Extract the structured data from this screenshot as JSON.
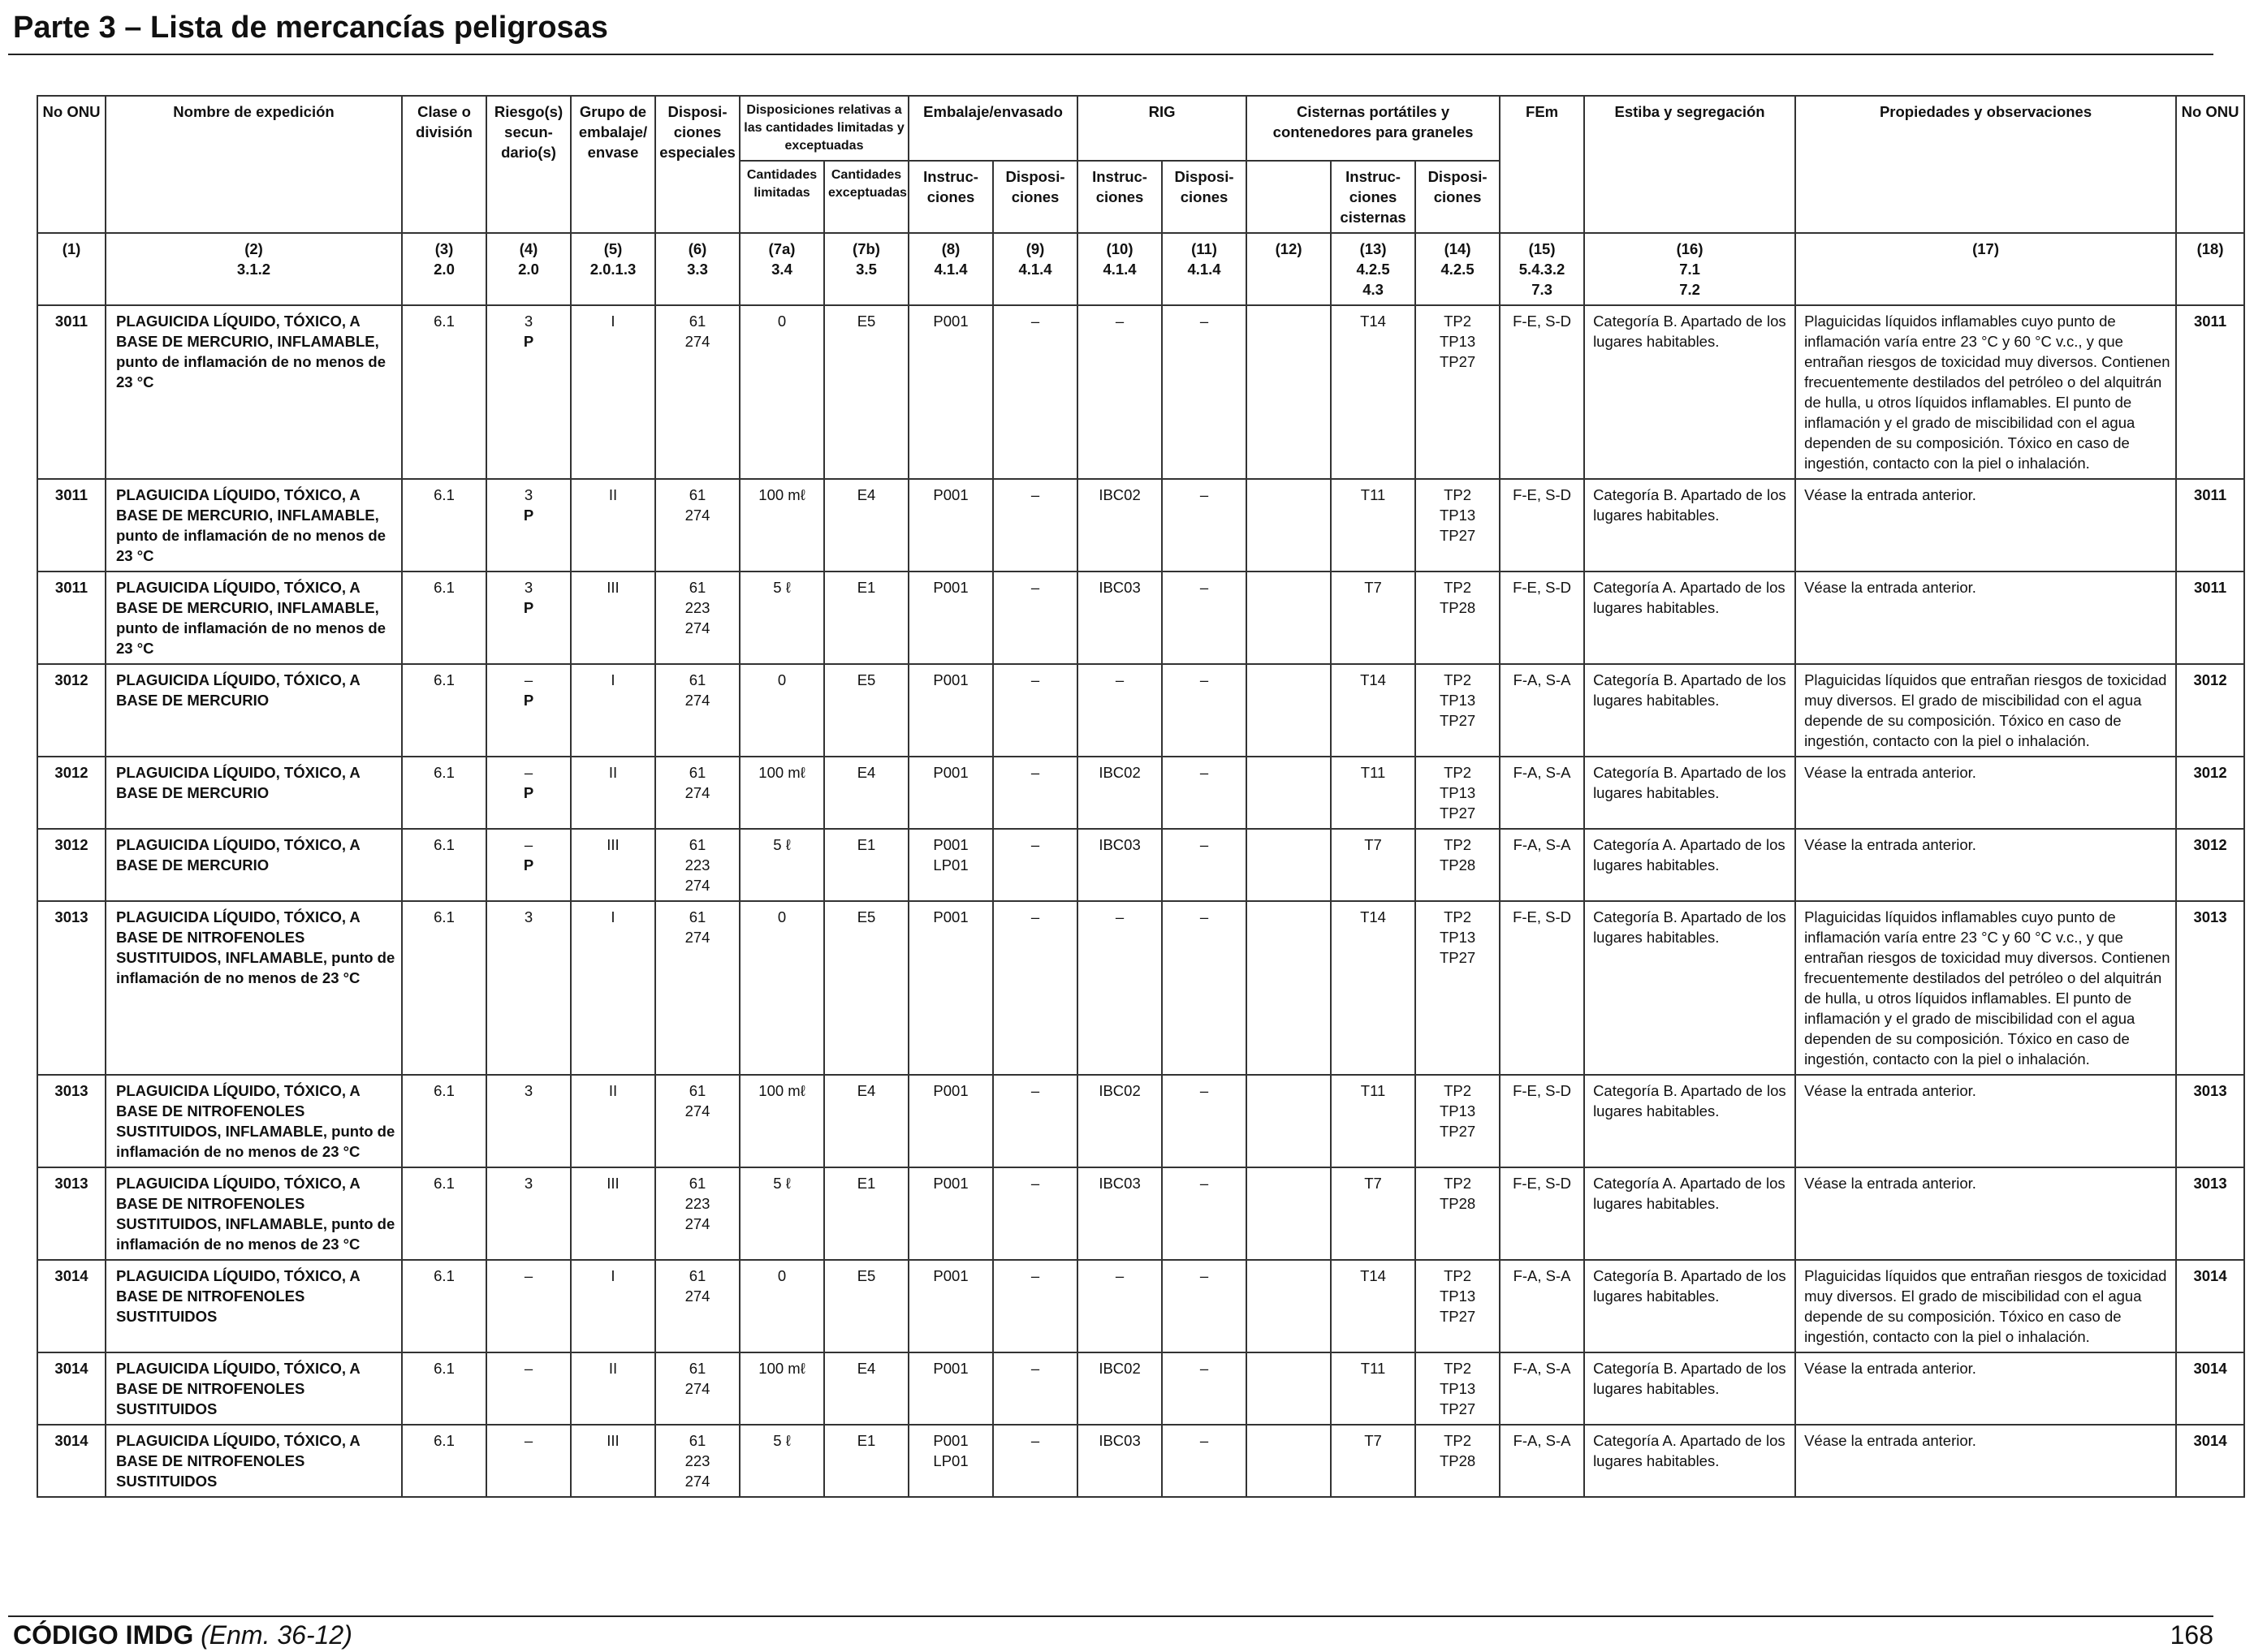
{
  "header": {
    "title": "Parte 3 – Lista de mercancías peligrosas"
  },
  "columns": {
    "c1": "No ONU",
    "c2": "Nombre de expedición",
    "c3": "Clase o división",
    "c4": "Riesgo(s) secun-dario(s)",
    "c5": "Grupo de embalaje/ envase",
    "c6": "Disposi-ciones especiales",
    "c7": "Disposiciones relativas a las cantidades limitadas y exceptuadas",
    "c7a": "Cantidades limitadas",
    "c7b": "Cantidades exceptuadas",
    "c8_9": "Embalaje/envasado",
    "c8": "Instruc-ciones",
    "c9": "Disposi-ciones",
    "c10_11": "RIG",
    "c10": "Instruc-ciones",
    "c11": "Disposi-ciones",
    "c12_14": "Cisternas portátiles y contenedores para graneles",
    "c13": "Instruc-ciones cisternas",
    "c14": "Disposi-ciones",
    "c15": "FEm",
    "c16": "Estiba y segregación",
    "c17": "Propiedades y observaciones",
    "c18": "No ONU"
  },
  "colnums": [
    {
      "n": "(1)",
      "ref": ""
    },
    {
      "n": "(2)",
      "ref": "3.1.2"
    },
    {
      "n": "(3)",
      "ref": "2.0"
    },
    {
      "n": "(4)",
      "ref": "2.0"
    },
    {
      "n": "(5)",
      "ref": "2.0.1.3"
    },
    {
      "n": "(6)",
      "ref": "3.3"
    },
    {
      "n": "(7a)",
      "ref": "3.4"
    },
    {
      "n": "(7b)",
      "ref": "3.5"
    },
    {
      "n": "(8)",
      "ref": "4.1.4"
    },
    {
      "n": "(9)",
      "ref": "4.1.4"
    },
    {
      "n": "(10)",
      "ref": "4.1.4"
    },
    {
      "n": "(11)",
      "ref": "4.1.4"
    },
    {
      "n": "(12)",
      "ref": ""
    },
    {
      "n": "(13)",
      "ref": "4.2.5\n4.3"
    },
    {
      "n": "(14)",
      "ref": "4.2.5"
    },
    {
      "n": "(15)",
      "ref": "5.4.3.2\n7.3"
    },
    {
      "n": "(16)",
      "ref": "7.1\n7.2"
    },
    {
      "n": "(17)",
      "ref": ""
    },
    {
      "n": "(18)",
      "ref": ""
    }
  ],
  "rows": [
    {
      "un": "3011",
      "name": "PLAGUICIDA LÍQUIDO, TÓXICO, A BASE DE MERCURIO, INFLAMABLE,",
      "name_extra": "punto de inflamación de no menos de 23 °C",
      "cls": "6.1",
      "sub": "3\nP",
      "pg": "I",
      "sp": "61\n274",
      "lq": "0",
      "eq": "E5",
      "pi": "P001",
      "pp": "–",
      "ibc": "–",
      "ibcp": "–",
      "c12": "",
      "tank": "T14",
      "tankp": "TP2\nTP13\nTP27",
      "ems": "F-E, S-D",
      "stow": "Categoría B. Apartado de los lugares habitables.",
      "props": "Plaguicidas líquidos inflamables cuyo punto de inflamación varía entre 23 °C y 60 °C v.c., y que entrañan riesgos de toxicidad muy diversos. Contienen frecuentemente destilados del petróleo o del alquitrán de hulla, u otros líquidos inflamables. El punto de inflamación y el grado de miscibilidad con el agua dependen de su composición. Tóxico en caso de ingestión, contacto con la piel o inhalación.",
      "un2": "3011"
    },
    {
      "un": "3011",
      "name": "PLAGUICIDA LÍQUIDO, TÓXICO, A BASE DE MERCURIO, INFLAMABLE,",
      "name_extra": "punto de inflamación de no menos de 23 °C",
      "cls": "6.1",
      "sub": "3\nP",
      "pg": "II",
      "sp": "61\n274",
      "lq": "100 mℓ",
      "eq": "E4",
      "pi": "P001",
      "pp": "–",
      "ibc": "IBC02",
      "ibcp": "–",
      "c12": "",
      "tank": "T11",
      "tankp": "TP2\nTP13\nTP27",
      "ems": "F-E, S-D",
      "stow": "Categoría B. Apartado de los lugares habitables.",
      "props": "Véase la entrada anterior.",
      "un2": "3011"
    },
    {
      "un": "3011",
      "name": "PLAGUICIDA LÍQUIDO, TÓXICO, A BASE DE MERCURIO, INFLAMABLE,",
      "name_extra": "punto de inflamación de no menos de 23 °C",
      "cls": "6.1",
      "sub": "3\nP",
      "pg": "III",
      "sp": "61\n223\n274",
      "lq": "5 ℓ",
      "eq": "E1",
      "pi": "P001",
      "pp": "–",
      "ibc": "IBC03",
      "ibcp": "–",
      "c12": "",
      "tank": "T7",
      "tankp": "TP2\nTP28",
      "ems": "F-E, S-D",
      "stow": "Categoría A. Apartado de los lugares habitables.",
      "props": "Véase la entrada anterior.",
      "un2": "3011"
    },
    {
      "un": "3012",
      "name": "PLAGUICIDA LÍQUIDO, TÓXICO, A BASE DE MERCURIO",
      "name_extra": "",
      "cls": "6.1",
      "sub": "–\nP",
      "pg": "I",
      "sp": "61\n274",
      "lq": "0",
      "eq": "E5",
      "pi": "P001",
      "pp": "–",
      "ibc": "–",
      "ibcp": "–",
      "c12": "",
      "tank": "T14",
      "tankp": "TP2\nTP13\nTP27",
      "ems": "F-A, S-A",
      "stow": "Categoría B. Apartado de los lugares habitables.",
      "props": "Plaguicidas líquidos que entrañan riesgos de toxicidad muy diversos. El grado de miscibilidad con el agua depende de su composición. Tóxico en caso de ingestión, contacto con la piel o inhalación.",
      "un2": "3012"
    },
    {
      "un": "3012",
      "name": "PLAGUICIDA LÍQUIDO, TÓXICO, A BASE DE MERCURIO",
      "name_extra": "",
      "cls": "6.1",
      "sub": "–\nP",
      "pg": "II",
      "sp": "61\n274",
      "lq": "100 mℓ",
      "eq": "E4",
      "pi": "P001",
      "pp": "–",
      "ibc": "IBC02",
      "ibcp": "–",
      "c12": "",
      "tank": "T11",
      "tankp": "TP2\nTP13\nTP27",
      "ems": "F-A, S-A",
      "stow": "Categoría B. Apartado de los lugares habitables.",
      "props": "Véase la entrada anterior.",
      "un2": "3012"
    },
    {
      "un": "3012",
      "name": "PLAGUICIDA LÍQUIDO, TÓXICO, A BASE DE MERCURIO",
      "name_extra": "",
      "cls": "6.1",
      "sub": "–\nP",
      "pg": "III",
      "sp": "61\n223\n274",
      "lq": "5 ℓ",
      "eq": "E1",
      "pi": "P001\nLP01",
      "pp": "–",
      "ibc": "IBC03",
      "ibcp": "–",
      "c12": "",
      "tank": "T7",
      "tankp": "TP2\nTP28",
      "ems": "F-A, S-A",
      "stow": "Categoría A. Apartado de los lugares habitables.",
      "props": "Véase la entrada anterior.",
      "un2": "3012"
    },
    {
      "un": "3013",
      "name": "PLAGUICIDA LÍQUIDO, TÓXICO, A BASE DE NITROFENOLES SUSTITUIDOS, INFLAMABLE,",
      "name_extra": "punto de inflamación de no menos de 23 °C",
      "cls": "6.1",
      "sub": "3",
      "pg": "I",
      "sp": "61\n274",
      "lq": "0",
      "eq": "E5",
      "pi": "P001",
      "pp": "–",
      "ibc": "–",
      "ibcp": "–",
      "c12": "",
      "tank": "T14",
      "tankp": "TP2\nTP13\nTP27",
      "ems": "F-E, S-D",
      "stow": "Categoría B. Apartado de los lugares habitables.",
      "props": "Plaguicidas líquidos inflamables cuyo punto de inflamación varía entre 23 °C y 60 °C v.c., y que entrañan riesgos de toxicidad muy diversos. Contienen frecuentemente destilados del petróleo o del alquitrán de hulla, u otros líquidos inflamables. El punto de inflamación y el grado de miscibilidad con el agua dependen de su composición. Tóxico en caso de ingestión, contacto con la piel o inhalación.",
      "un2": "3013"
    },
    {
      "un": "3013",
      "name": "PLAGUICIDA LÍQUIDO, TÓXICO, A BASE DE NITROFENOLES SUSTITUIDOS, INFLAMABLE,",
      "name_extra": "punto de inflamación de no menos de 23 °C",
      "cls": "6.1",
      "sub": "3",
      "pg": "II",
      "sp": "61\n274",
      "lq": "100 mℓ",
      "eq": "E4",
      "pi": "P001",
      "pp": "–",
      "ibc": "IBC02",
      "ibcp": "–",
      "c12": "",
      "tank": "T11",
      "tankp": "TP2\nTP13\nTP27",
      "ems": "F-E, S-D",
      "stow": "Categoría B. Apartado de los lugares habitables.",
      "props": "Véase la entrada anterior.",
      "un2": "3013"
    },
    {
      "un": "3013",
      "name": "PLAGUICIDA LÍQUIDO, TÓXICO, A BASE DE NITROFENOLES SUSTITUIDOS, INFLAMABLE,",
      "name_extra": "punto de inflamación de no menos de 23 °C",
      "cls": "6.1",
      "sub": "3",
      "pg": "III",
      "sp": "61\n223\n274",
      "lq": "5 ℓ",
      "eq": "E1",
      "pi": "P001",
      "pp": "–",
      "ibc": "IBC03",
      "ibcp": "–",
      "c12": "",
      "tank": "T7",
      "tankp": "TP2\nTP28",
      "ems": "F-E, S-D",
      "stow": "Categoría A. Apartado de los lugares habitables.",
      "props": "Véase la entrada anterior.",
      "un2": "3013"
    },
    {
      "un": "3014",
      "name": "PLAGUICIDA LÍQUIDO, TÓXICO, A BASE DE NITROFENOLES SUSTITUIDOS",
      "name_extra": "",
      "cls": "6.1",
      "sub": "–",
      "pg": "I",
      "sp": "61\n274",
      "lq": "0",
      "eq": "E5",
      "pi": "P001",
      "pp": "–",
      "ibc": "–",
      "ibcp": "–",
      "c12": "",
      "tank": "T14",
      "tankp": "TP2\nTP13\nTP27",
      "ems": "F-A, S-A",
      "stow": "Categoría B. Apartado de los lugares habitables.",
      "props": "Plaguicidas líquidos que entrañan riesgos de toxicidad muy diversos. El grado de miscibilidad con el agua depende de su composición. Tóxico en caso de ingestión, contacto con la piel o inhalación.",
      "un2": "3014"
    },
    {
      "un": "3014",
      "name": "PLAGUICIDA LÍQUIDO, TÓXICO, A BASE DE NITROFENOLES SUSTITUIDOS",
      "name_extra": "",
      "cls": "6.1",
      "sub": "–",
      "pg": "II",
      "sp": "61\n274",
      "lq": "100 mℓ",
      "eq": "E4",
      "pi": "P001",
      "pp": "–",
      "ibc": "IBC02",
      "ibcp": "–",
      "c12": "",
      "tank": "T11",
      "tankp": "TP2\nTP13\nTP27",
      "ems": "F-A, S-A",
      "stow": "Categoría B. Apartado de los lugares habitables.",
      "props": "Véase la entrada anterior.",
      "un2": "3014"
    },
    {
      "un": "3014",
      "name": "PLAGUICIDA LÍQUIDO, TÓXICO, A BASE DE NITROFENOLES SUSTITUIDOS",
      "name_extra": "",
      "cls": "6.1",
      "sub": "–",
      "pg": "III",
      "sp": "61\n223\n274",
      "lq": "5 ℓ",
      "eq": "E1",
      "pi": "P001\nLP01",
      "pp": "–",
      "ibc": "IBC03",
      "ibcp": "–",
      "c12": "",
      "tank": "T7",
      "tankp": "TP2\nTP28",
      "ems": "F-A, S-A",
      "stow": "Categoría A. Apartado de los lugares habitables.",
      "props": "Véase la entrada anterior.",
      "un2": "3014"
    }
  ],
  "footer": {
    "code_bold": "CÓDIGO IMDG",
    "code_italic": "(Enm. 36-12)",
    "page": "168"
  }
}
